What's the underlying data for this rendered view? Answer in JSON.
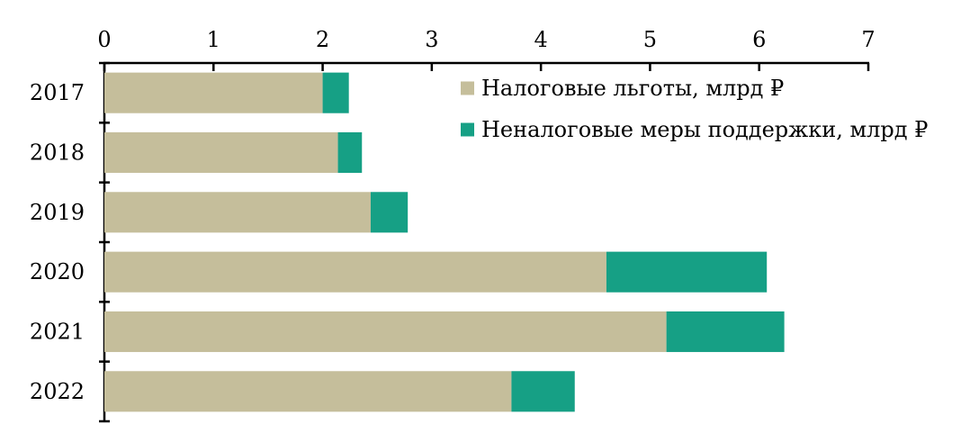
{
  "chart_data": {
    "type": "bar",
    "orientation": "horizontal",
    "stacked": true,
    "categories": [
      "2017",
      "2018",
      "2019",
      "2020",
      "2021",
      "2022"
    ],
    "series": [
      {
        "name": "Налоговые льготы, млрд ₽",
        "color": "#c5be9b",
        "values": [
          2.0,
          2.14,
          2.44,
          4.6,
          5.15,
          3.73
        ]
      },
      {
        "name": "Неналоговые меры поддержки, млрд ₽",
        "color": "#16a085",
        "values": [
          0.24,
          0.22,
          0.34,
          1.47,
          1.08,
          0.58
        ]
      }
    ],
    "xlim": [
      0,
      7
    ],
    "x_ticks": [
      "0",
      "1",
      "2",
      "3",
      "4",
      "5",
      "6",
      "7"
    ],
    "x_axis_position": "top",
    "legend_position": "top-right",
    "grid": false,
    "title": "",
    "xlabel": "",
    "ylabel": ""
  }
}
